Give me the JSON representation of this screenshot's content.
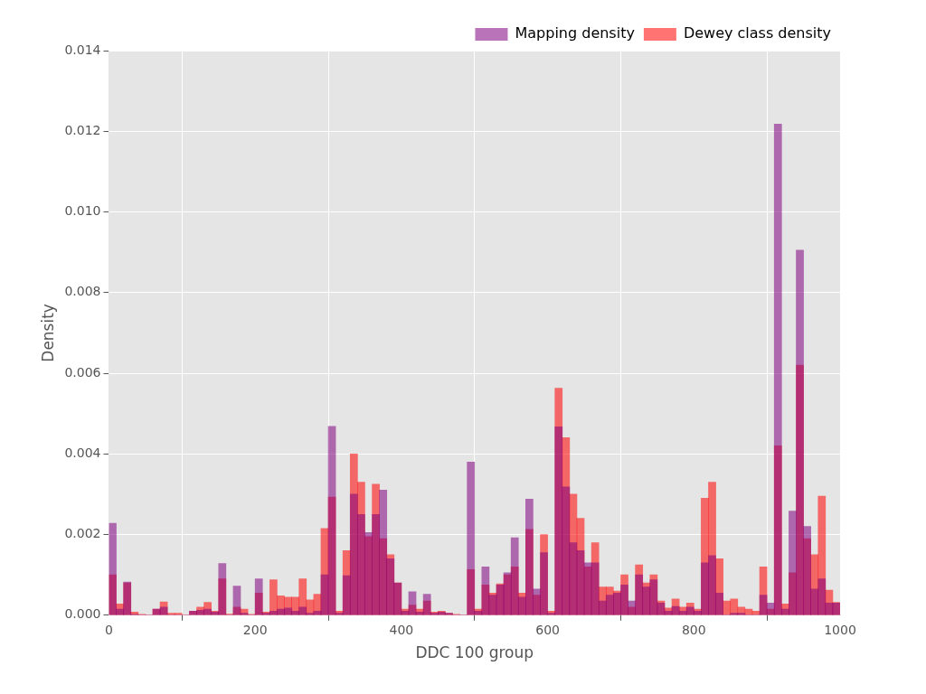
{
  "chart_data": {
    "type": "histogram",
    "xlabel": "DDC 100 group",
    "ylabel": "Density",
    "bins": [
      0,
      10,
      20,
      30,
      40,
      50,
      60,
      70,
      80,
      90,
      100,
      110,
      120,
      130,
      140,
      150,
      160,
      170,
      180,
      190,
      200,
      210,
      220,
      230,
      240,
      250,
      260,
      270,
      280,
      290,
      300,
      310,
      320,
      330,
      340,
      350,
      360,
      370,
      380,
      390,
      400,
      410,
      420,
      430,
      440,
      450,
      460,
      470,
      480,
      490,
      500,
      510,
      520,
      530,
      540,
      550,
      560,
      570,
      580,
      590,
      600,
      610,
      620,
      630,
      640,
      650,
      660,
      670,
      680,
      690,
      700,
      710,
      720,
      730,
      740,
      750,
      760,
      770,
      780,
      790,
      800,
      810,
      820,
      830,
      840,
      850,
      860,
      870,
      880,
      890,
      900,
      910,
      920,
      930,
      940,
      950,
      960,
      970,
      980,
      990,
      1000
    ],
    "series": [
      {
        "name": "Dewey class density",
        "color": "#ff0000",
        "values": [
          0.001,
          0.00028,
          0.0008,
          8e-05,
          2e-05,
          0,
          0.00015,
          0.00033,
          5e-05,
          5e-05,
          0,
          0.0001,
          0.0002,
          0.00032,
          0.0001,
          0.0009,
          3e-05,
          0.0002,
          0.00015,
          2e-05,
          0.00055,
          8e-05,
          0.00088,
          0.00048,
          0.00045,
          0.00045,
          0.0009,
          0.00038,
          0.00052,
          0.00215,
          0.00293,
          0.0001,
          0.0016,
          0.004,
          0.0033,
          0.00195,
          0.00325,
          0.0019,
          0.0015,
          0.0008,
          0.00015,
          0.00025,
          0.00015,
          0.00035,
          8e-05,
          0.0001,
          5e-05,
          2e-05,
          0,
          0.00113,
          0.00015,
          0.00075,
          0.00055,
          0.00078,
          0.001,
          0.0012,
          0.00055,
          0.00213,
          0.0005,
          0.002,
          0.0001,
          0.00563,
          0.0044,
          0.003,
          0.0024,
          0.0012,
          0.0018,
          0.0007,
          0.0007,
          0.0006,
          0.001,
          0.0002,
          0.00125,
          0.0008,
          0.001,
          0.00035,
          0.00018,
          0.0004,
          0.0002,
          0.0003,
          0.00015,
          0.0029,
          0.0033,
          0.0014,
          0.00035,
          0.0004,
          0.0002,
          0.00015,
          0.0001,
          0.0012,
          0.00015,
          0.0042,
          0.00028,
          0.00105,
          0.0062,
          0.0019,
          0.0015,
          0.00295,
          0.00062,
          0.00032
        ]
      },
      {
        "name": "Mapping density",
        "color": "#800080",
        "values": [
          0.00228,
          0.00015,
          0.00082,
          2e-05,
          0,
          0,
          0.00015,
          0.0002,
          0,
          0,
          0,
          0.0001,
          0.00012,
          0.00015,
          8e-05,
          0.00128,
          0,
          0.00072,
          5e-05,
          0,
          0.0009,
          5e-05,
          0.0001,
          0.00015,
          0.00018,
          0.0001,
          0.0002,
          5e-05,
          0.0001,
          0.001,
          0.00468,
          5e-05,
          0.00098,
          0.003,
          0.0025,
          0.00205,
          0.0025,
          0.0031,
          0.0014,
          0.0008,
          0.0001,
          0.00058,
          8e-05,
          0.00052,
          5e-05,
          8e-05,
          5e-05,
          0,
          0,
          0.0038,
          0.0001,
          0.0012,
          0.0005,
          0.00075,
          0.00105,
          0.00192,
          0.00045,
          0.00288,
          0.00065,
          0.00155,
          5e-05,
          0.00467,
          0.00318,
          0.0018,
          0.0016,
          0.0013,
          0.0013,
          0.00035,
          0.0005,
          0.00055,
          0.00075,
          0.00035,
          0.001,
          0.0007,
          0.00088,
          0.0003,
          0.0001,
          0.00022,
          0.0001,
          0.0002,
          0.0001,
          0.0013,
          0.00148,
          0.00055,
          0,
          5e-05,
          5e-05,
          0,
          0,
          0.0005,
          0.0003,
          0.01218,
          0.00015,
          0.00258,
          0.00905,
          0.0022,
          0.00065,
          0.0009,
          0.0003,
          0.0003
        ]
      }
    ],
    "xlim": [
      0,
      1000
    ],
    "xticks": [
      0,
      200,
      400,
      600,
      800,
      1000
    ],
    "ylim": [
      0,
      0.014
    ],
    "yticks": [
      {
        "value": 0,
        "label": "0.000"
      },
      {
        "value": 0.002,
        "label": "0.002"
      },
      {
        "value": 0.004,
        "label": "0.004"
      },
      {
        "value": 0.006,
        "label": "0.006"
      },
      {
        "value": 0.008,
        "label": "0.008"
      },
      {
        "value": 0.01,
        "label": "0.010"
      },
      {
        "value": 0.012,
        "label": "0.012"
      },
      {
        "value": 0.014,
        "label": "0.014"
      }
    ],
    "grid": true,
    "legend": "upper right"
  }
}
